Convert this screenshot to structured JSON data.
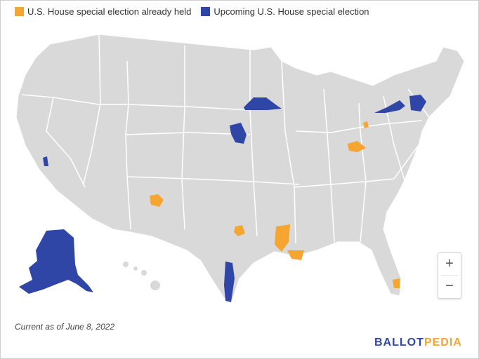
{
  "legend": {
    "items": [
      {
        "label": "U.S. House special election already held",
        "color": "#f5a530"
      },
      {
        "label": "Upcoming U.S. House special election",
        "color": "#2f46a6"
      }
    ]
  },
  "map": {
    "land_color": "#d9d9d9",
    "border_color": "#ffffff",
    "districts_held": [
      "New Mexico 1",
      "Texas 6",
      "Louisiana 2",
      "Louisiana 5",
      "Ohio 11",
      "Ohio 15",
      "Florida 20"
    ],
    "districts_upcoming": [
      "Alaska At-Large",
      "California 22",
      "Minnesota 1",
      "Nebraska 1",
      "New York 19",
      "New York 23",
      "Texas 34"
    ]
  },
  "zoom": {
    "in_label": "+",
    "out_label": "−"
  },
  "footnote": "Current as of June 8, 2022",
  "brand": {
    "part1": "BALLOT",
    "part2": "PEDIA",
    "color1": "#2f46a6",
    "color2": "#f5a530"
  }
}
